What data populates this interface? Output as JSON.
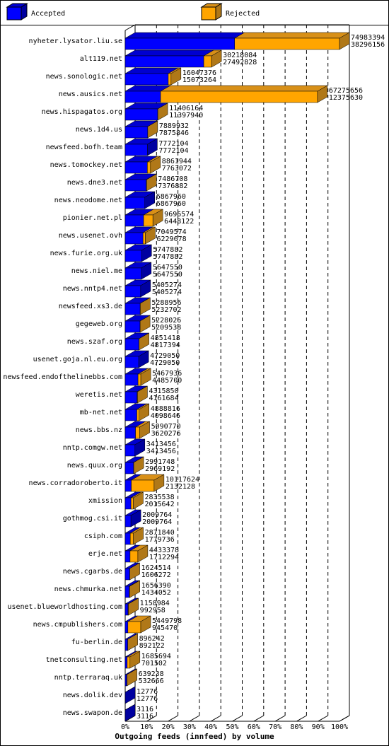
{
  "chart_data": {
    "type": "bar3d",
    "orientation": "horizontal",
    "stacked": true,
    "x_label": "Outgoing feeds (innfeed) by volume",
    "categories": [
      "nyheter.lysator.liu.se",
      "alt119.net",
      "news.sonologic.net",
      "news.ausics.net",
      "news.hispagatos.org",
      "news.1d4.us",
      "newsfeed.bofh.team",
      "news.tomockey.net",
      "news.dne3.net",
      "news.neodome.net",
      "pionier.net.pl",
      "news.usenet.ovh",
      "news.furie.org.uk",
      "news.niel.me",
      "news.nntp4.net",
      "newsfeed.xs3.de",
      "gegeweb.org",
      "news.szaf.org",
      "usenet.goja.nl.eu.org",
      "newsfeed.endofthelinebbs.com",
      "weretis.net",
      "mb-net.net",
      "news.bbs.nz",
      "nntp.comgw.net",
      "news.quux.org",
      "news.corradoroberto.it",
      "xmission",
      "gothmog.csi.it",
      "csiph.com",
      "erje.net",
      "news.cgarbs.de",
      "news.chmurka.net",
      "usenet.blueworldhosting.com",
      "news.cmpublishers.com",
      "fu-berlin.de",
      "tnetconsulting.net",
      "nntp.terraraq.uk",
      "news.dolik.dev",
      "news.swapon.de"
    ],
    "totals": [
      74983394,
      30218084,
      16047376,
      67275656,
      11406164,
      7889932,
      7772104,
      8861944,
      7486708,
      6867960,
      9696574,
      7049574,
      5747882,
      5647550,
      5405274,
      5288956,
      5228026,
      4851418,
      4729050,
      5467936,
      4315850,
      4888816,
      5090770,
      3413456,
      2991748,
      10117624,
      2835538,
      2009764,
      2871840,
      4433378,
      1624514,
      1656390,
      1158984,
      5449798,
      896242,
      1685694,
      639238,
      12776,
      3116
    ],
    "series": [
      {
        "name": "Accepted",
        "color": "#0000ff",
        "values": [
          38296156,
          27492828,
          15073264,
          12375630,
          11397940,
          7875846,
          7772104,
          7763072,
          7376882,
          6867960,
          6448122,
          6229678,
          5747882,
          5647550,
          5405274,
          5232702,
          5209538,
          4817394,
          4729050,
          4485700,
          4161684,
          4098646,
          3620276,
          3413456,
          2969192,
          2132128,
          2015642,
          2009764,
          1779736,
          1712294,
          1606272,
          1434052,
          992958,
          945470,
          892122,
          701502,
          532666,
          12776,
          3116
        ]
      },
      {
        "name": "Rejected",
        "color": "#ffa500",
        "values": [
          36687238,
          2725256,
          974112,
          54900026,
          8224,
          14086,
          0,
          1098872,
          109826,
          0,
          3248452,
          819896,
          0,
          0,
          0,
          56254,
          18488,
          34024,
          0,
          982236,
          154166,
          790170,
          1470494,
          0,
          22556,
          7985496,
          819896,
          0,
          1092104,
          2721084,
          18242,
          222338,
          166026,
          4504328,
          4120,
          984192,
          106572,
          0,
          0
        ]
      }
    ],
    "xlim": [
      0,
      74983394
    ],
    "xticks": [
      {
        "value": 0,
        "label": "0%"
      },
      {
        "value": 7498339.4,
        "label": "10%"
      },
      {
        "value": 14996678.8,
        "label": "20%"
      },
      {
        "value": 22495018.2,
        "label": "30%"
      },
      {
        "value": 29993357.6,
        "label": "40%"
      },
      {
        "value": 37491697,
        "label": "50%"
      },
      {
        "value": 44990036.4,
        "label": "60%"
      },
      {
        "value": 52488375.8,
        "label": "70%"
      },
      {
        "value": 59986715.2,
        "label": "80%"
      },
      {
        "value": 67485054.6,
        "label": "90%"
      },
      {
        "value": 74983394,
        "label": "100%"
      }
    ],
    "grid": true
  }
}
